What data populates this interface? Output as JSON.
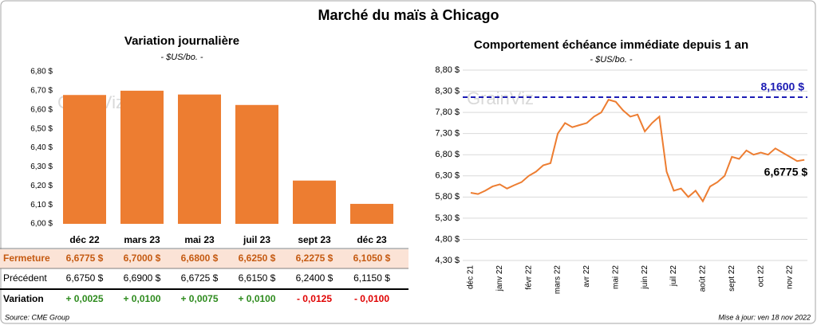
{
  "title": "Marché du maïs à Chicago",
  "watermark": "GrainViz",
  "source": "Source: CME Group",
  "updated": "Mise à jour: ven 18 nov 2022",
  "chart_data": [
    {
      "type": "bar",
      "title": "Variation journalière",
      "subtitle": "- $US/bo. -",
      "categories": [
        "déc 22",
        "mars 23",
        "mai 23",
        "juil 23",
        "sept 23",
        "déc 23"
      ],
      "series": [
        {
          "name": "Fermeture",
          "color": "#ed7d31",
          "values": [
            6.6775,
            6.7,
            6.68,
            6.625,
            6.2275,
            6.105
          ],
          "value_labels": [
            "6,6775  $",
            "6,7000  $",
            "6,6800  $",
            "6,6250  $",
            "6,2275  $",
            "6,1050  $"
          ]
        }
      ],
      "ylim": [
        6.0,
        6.8
      ],
      "yticks": [
        {
          "value": 6.0,
          "label": "6,00 $"
        },
        {
          "value": 6.1,
          "label": "6,10 $"
        },
        {
          "value": 6.2,
          "label": "6,20 $"
        },
        {
          "value": 6.3,
          "label": "6,30 $"
        },
        {
          "value": 6.4,
          "label": "6,40 $"
        },
        {
          "value": 6.5,
          "label": "6,50 $"
        },
        {
          "value": 6.6,
          "label": "6,60 $"
        },
        {
          "value": 6.7,
          "label": "6,70 $"
        },
        {
          "value": 6.8,
          "label": "6,80 $"
        }
      ],
      "grid": false
    },
    {
      "type": "line",
      "title": "Comportement  échéance immédiate  depuis 1 an",
      "subtitle": "- $US/bo. -",
      "x": [
        "déc 21",
        null,
        null,
        null,
        "janv 22",
        null,
        null,
        null,
        "févr 22",
        null,
        null,
        null,
        "mars 22",
        null,
        null,
        null,
        "avr 22",
        null,
        null,
        null,
        "mai 22",
        null,
        null,
        null,
        "juin 22",
        null,
        null,
        null,
        "juil 22",
        null,
        null,
        null,
        "août 22",
        null,
        null,
        null,
        "sept 22",
        null,
        null,
        null,
        "oct 22",
        null,
        null,
        null,
        "nov 22",
        null,
        null
      ],
      "series": [
        {
          "name": "Échéance immédiate",
          "color": "#ed7d31",
          "values": [
            5.9,
            5.87,
            5.95,
            6.05,
            6.1,
            6.0,
            6.08,
            6.15,
            6.3,
            6.4,
            6.55,
            6.6,
            7.3,
            7.55,
            7.45,
            7.5,
            7.55,
            7.7,
            7.8,
            8.1,
            8.05,
            7.85,
            7.7,
            7.75,
            7.35,
            7.55,
            7.7,
            6.4,
            5.95,
            6.0,
            5.8,
            5.95,
            5.7,
            6.05,
            6.15,
            6.3,
            6.75,
            6.7,
            6.9,
            6.8,
            6.85,
            6.8,
            6.95,
            6.85,
            6.75,
            6.65,
            6.6775
          ],
          "value_labels": [
            null,
            null,
            null,
            null,
            null,
            null,
            null,
            null,
            null,
            null,
            null,
            null,
            null,
            null,
            null,
            null,
            null,
            null,
            null,
            null,
            null,
            null,
            null,
            null,
            null,
            null,
            null,
            null,
            null,
            null,
            null,
            null,
            null,
            null,
            null,
            null,
            null,
            null,
            null,
            null,
            null,
            null,
            null,
            null,
            null,
            null,
            "6,6775 $"
          ]
        }
      ],
      "hline": {
        "value": 8.16,
        "label": "8,1600 $",
        "color": "#1c1cb4"
      },
      "ylim": [
        4.3,
        8.8
      ],
      "yticks": [
        {
          "value": 4.3,
          "label": "4,30 $"
        },
        {
          "value": 4.8,
          "label": "4,80 $"
        },
        {
          "value": 5.3,
          "label": "5,30 $"
        },
        {
          "value": 5.8,
          "label": "5,80 $"
        },
        {
          "value": 6.3,
          "label": "6,30 $"
        },
        {
          "value": 6.8,
          "label": "6,80 $"
        },
        {
          "value": 7.3,
          "label": "7,30 $"
        },
        {
          "value": 7.8,
          "label": "7,80 $"
        },
        {
          "value": 8.3,
          "label": "8,30 $"
        },
        {
          "value": 8.8,
          "label": "8,80 $"
        }
      ],
      "grid": true
    }
  ],
  "table": {
    "rows": [
      {
        "label": "Précédent",
        "cells": [
          "6,6750  $",
          "6,6900  $",
          "6,6725  $",
          "6,6150  $",
          "6,2400  $",
          "6,1150  $"
        ]
      },
      {
        "label": "Variation",
        "cells": [
          "+ 0,0025",
          "+ 0,0100",
          "+ 0,0075",
          "+ 0,0100",
          "- 0,0125",
          "- 0,0100"
        ]
      }
    ]
  }
}
